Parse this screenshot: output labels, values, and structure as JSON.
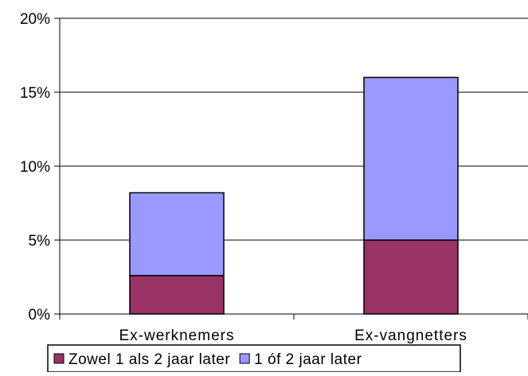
{
  "chart_data": {
    "type": "bar",
    "stacked": true,
    "categories": [
      "Ex-werknemers",
      "Ex-vangnetters"
    ],
    "series": [
      {
        "name": "Zowel 1 als 2 jaar later",
        "color": "#993366",
        "values": [
          2.6,
          5.0
        ]
      },
      {
        "name": "1 óf 2 jaar later",
        "color": "#9999ff",
        "values": [
          5.6,
          11.0
        ]
      }
    ],
    "ylim": [
      0,
      20
    ],
    "yticks": [
      "0%",
      "5%",
      "10%",
      "15%",
      "20%"
    ],
    "grid": true,
    "legend_position": "bottom"
  }
}
